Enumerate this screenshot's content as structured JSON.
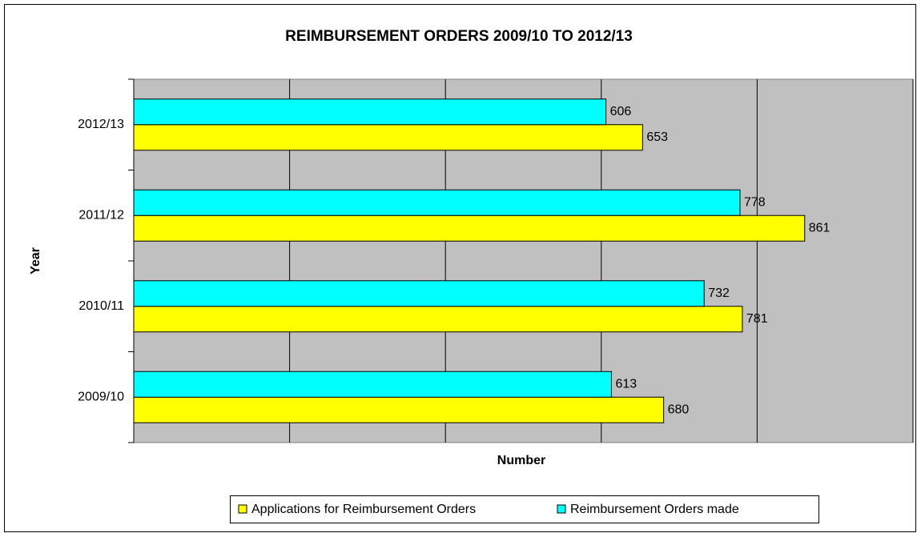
{
  "chart_data": {
    "type": "bar",
    "orientation": "horizontal",
    "title": "REIMBURSEMENT ORDERS 2009/10 TO 2012/13",
    "x_label": "Number",
    "y_label": "Year",
    "categories": [
      "2009/10",
      "2010/11",
      "2011/12",
      "2012/13"
    ],
    "series": [
      {
        "name": "Applications for Reimbursement Orders",
        "color": "#ffff00",
        "values": [
          680,
          781,
          861,
          653
        ]
      },
      {
        "name": "Reimbursement Orders made",
        "color": "#00ffff",
        "values": [
          613,
          732,
          778,
          606
        ]
      }
    ],
    "xlim": [
      0,
      1000
    ],
    "xticks": [
      0,
      200,
      400,
      600,
      800,
      1000
    ],
    "grid": true,
    "legend": "bottom"
  }
}
